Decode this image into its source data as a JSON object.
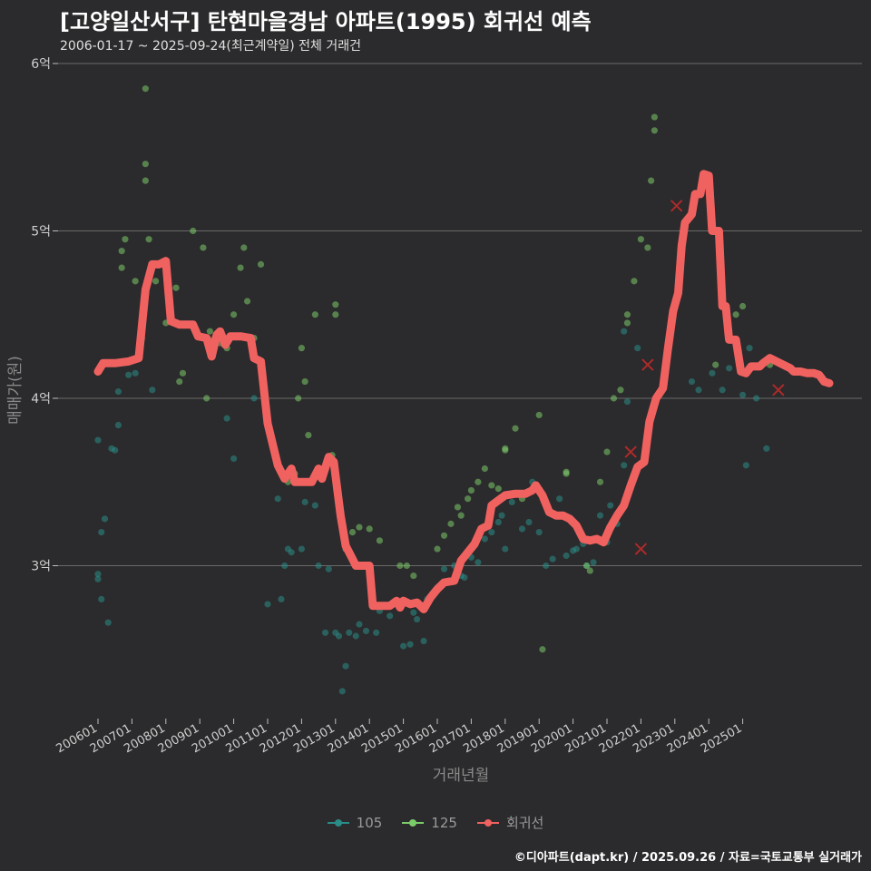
{
  "header": {
    "title": "[고양일산서구] 탄현마을경남 아파트(1995) 회귀선 예측",
    "subtitle": "2006-01-17 ~ 2025-09-24(최근계약일) 전체 거래건"
  },
  "footer": {
    "credit": "©디아파트(dapt.kr) / 2025.09.26 / 자료=국토교통부 실거래가"
  },
  "colors": {
    "background": "#2b2a2c",
    "grid": "#6a6a6a",
    "series_105": "#2a8c86",
    "series_125": "#7ccb6a",
    "regression": "#f06260"
  },
  "chart_data": {
    "type": "scatter",
    "xlabel": "거래년월",
    "ylabel": "매매가(원)",
    "x_tick_labels": [
      "200601",
      "200701",
      "200801",
      "200901",
      "201001",
      "201101",
      "201201",
      "201301",
      "201401",
      "201501",
      "201601",
      "201701",
      "201801",
      "201901",
      "202001",
      "202101",
      "202201",
      "202301",
      "202401",
      "202501"
    ],
    "y_tick_labels": [
      "3억",
      "4억",
      "5억",
      "6억"
    ],
    "y_ticks": [
      3.0,
      4.0,
      5.0,
      6.0
    ],
    "ylim": [
      2.0,
      6.0
    ],
    "y_unit": "억원",
    "grid": true,
    "legend_position": "bottom",
    "series": [
      {
        "name": "105",
        "points": [
          [
            2006.0,
            2.95
          ],
          [
            2006.0,
            2.92
          ],
          [
            2006.1,
            2.8
          ],
          [
            2006.1,
            3.2
          ],
          [
            2006.2,
            3.28
          ],
          [
            2006.3,
            2.66
          ],
          [
            2006.4,
            3.7
          ],
          [
            2006.5,
            3.69
          ],
          [
            2006.6,
            3.84
          ],
          [
            2006.6,
            4.04
          ],
          [
            2006.9,
            4.14
          ],
          [
            2007.1,
            4.15
          ],
          [
            2007.6,
            4.05
          ],
          [
            2006.0,
            3.75
          ],
          [
            2007.3,
            4.36
          ],
          [
            2009.8,
            3.88
          ],
          [
            2010.0,
            3.64
          ],
          [
            2010.6,
            4.0
          ],
          [
            2011.0,
            2.77
          ],
          [
            2011.3,
            3.4
          ],
          [
            2011.4,
            2.8
          ],
          [
            2011.5,
            3.0
          ],
          [
            2011.6,
            3.1
          ],
          [
            2011.7,
            3.08
          ],
          [
            2012.0,
            3.1
          ],
          [
            2012.1,
            3.38
          ],
          [
            2012.4,
            3.36
          ],
          [
            2012.5,
            3.0
          ],
          [
            2012.7,
            2.6
          ],
          [
            2012.8,
            2.98
          ],
          [
            2013.0,
            2.6
          ],
          [
            2013.1,
            2.58
          ],
          [
            2013.2,
            2.25
          ],
          [
            2013.3,
            2.4
          ],
          [
            2013.4,
            2.6
          ],
          [
            2013.6,
            2.58
          ],
          [
            2013.7,
            2.65
          ],
          [
            2013.9,
            2.61
          ],
          [
            2014.2,
            2.6
          ],
          [
            2014.3,
            2.73
          ],
          [
            2014.6,
            2.7
          ],
          [
            2015.0,
            2.52
          ],
          [
            2015.2,
            2.53
          ],
          [
            2015.3,
            2.72
          ],
          [
            2015.4,
            2.68
          ],
          [
            2015.6,
            2.55
          ],
          [
            2015.7,
            2.8
          ],
          [
            2016.0,
            2.87
          ],
          [
            2016.2,
            2.98
          ],
          [
            2016.5,
            3.0
          ],
          [
            2016.7,
            2.94
          ],
          [
            2016.8,
            2.93
          ],
          [
            2017.0,
            3.05
          ],
          [
            2017.2,
            3.02
          ],
          [
            2017.4,
            3.16
          ],
          [
            2017.6,
            3.2
          ],
          [
            2017.8,
            3.26
          ],
          [
            2017.9,
            3.3
          ],
          [
            2018.0,
            3.1
          ],
          [
            2018.2,
            3.38
          ],
          [
            2018.5,
            3.22
          ],
          [
            2018.7,
            3.26
          ],
          [
            2018.8,
            3.5
          ],
          [
            2019.0,
            3.2
          ],
          [
            2019.2,
            3.0
          ],
          [
            2019.4,
            3.04
          ],
          [
            2019.5,
            3.3
          ],
          [
            2019.6,
            3.4
          ],
          [
            2019.8,
            3.06
          ],
          [
            2020.0,
            3.09
          ],
          [
            2020.1,
            3.1
          ],
          [
            2020.3,
            3.13
          ],
          [
            2020.4,
            3.0
          ],
          [
            2020.6,
            3.02
          ],
          [
            2020.8,
            3.3
          ],
          [
            2021.0,
            3.14
          ],
          [
            2021.1,
            3.36
          ],
          [
            2021.3,
            3.25
          ],
          [
            2021.5,
            3.6
          ],
          [
            2021.6,
            3.98
          ],
          [
            2021.9,
            4.3
          ],
          [
            2021.5,
            4.4
          ],
          [
            2024.1,
            4.15
          ],
          [
            2024.4,
            4.05
          ],
          [
            2025.0,
            4.02
          ],
          [
            2025.1,
            3.6
          ],
          [
            2025.2,
            4.3
          ],
          [
            2025.4,
            4.0
          ],
          [
            2025.7,
            3.7
          ],
          [
            2023.5,
            4.1
          ],
          [
            2023.7,
            4.05
          ],
          [
            2024.6,
            4.18
          ]
        ]
      },
      {
        "name": "125",
        "points": [
          [
            2007.1,
            4.7
          ],
          [
            2007.4,
            5.85
          ],
          [
            2007.4,
            5.4
          ],
          [
            2007.4,
            5.3
          ],
          [
            2007.5,
            4.95
          ],
          [
            2006.8,
            4.95
          ],
          [
            2006.7,
            4.88
          ],
          [
            2006.7,
            4.78
          ],
          [
            2007.7,
            4.7
          ],
          [
            2008.3,
            4.66
          ],
          [
            2008.0,
            4.45
          ],
          [
            2008.4,
            4.1
          ],
          [
            2008.5,
            4.15
          ],
          [
            2008.8,
            5.0
          ],
          [
            2009.1,
            4.9
          ],
          [
            2009.2,
            4.0
          ],
          [
            2009.3,
            4.4
          ],
          [
            2009.4,
            4.35
          ],
          [
            2009.6,
            4.33
          ],
          [
            2009.8,
            4.3
          ],
          [
            2010.0,
            4.5
          ],
          [
            2010.2,
            4.78
          ],
          [
            2010.3,
            4.9
          ],
          [
            2010.4,
            4.58
          ],
          [
            2010.6,
            4.36
          ],
          [
            2010.8,
            4.8
          ],
          [
            2011.6,
            3.5
          ],
          [
            2011.8,
            3.55
          ],
          [
            2011.9,
            4.0
          ],
          [
            2012.0,
            4.3
          ],
          [
            2012.1,
            4.1
          ],
          [
            2012.2,
            3.78
          ],
          [
            2012.4,
            4.5
          ],
          [
            2013.0,
            4.56
          ],
          [
            2013.0,
            4.5
          ],
          [
            2012.9,
            3.66
          ],
          [
            2013.3,
            3.1
          ],
          [
            2013.5,
            3.2
          ],
          [
            2013.7,
            3.23
          ],
          [
            2014.0,
            3.22
          ],
          [
            2014.3,
            3.15
          ],
          [
            2014.9,
            3.0
          ],
          [
            2015.3,
            2.94
          ],
          [
            2016.0,
            3.1
          ],
          [
            2016.2,
            3.18
          ],
          [
            2016.4,
            3.25
          ],
          [
            2016.6,
            3.35
          ],
          [
            2016.7,
            3.3
          ],
          [
            2016.9,
            3.4
          ],
          [
            2017.0,
            3.45
          ],
          [
            2017.2,
            3.5
          ],
          [
            2017.4,
            3.58
          ],
          [
            2017.6,
            3.48
          ],
          [
            2017.8,
            3.46
          ],
          [
            2018.0,
            3.69
          ],
          [
            2018.0,
            3.7
          ],
          [
            2018.3,
            3.82
          ],
          [
            2018.5,
            3.4
          ],
          [
            2019.0,
            3.9
          ],
          [
            2019.8,
            3.55
          ],
          [
            2019.8,
            3.56
          ],
          [
            2020.4,
            3.0
          ],
          [
            2020.5,
            2.97
          ],
          [
            2020.8,
            3.5
          ],
          [
            2021.0,
            3.68
          ],
          [
            2021.2,
            4.0
          ],
          [
            2021.4,
            4.05
          ],
          [
            2021.6,
            4.45
          ],
          [
            2021.6,
            4.5
          ],
          [
            2021.8,
            4.7
          ],
          [
            2022.3,
            5.3
          ],
          [
            2022.4,
            5.6
          ],
          [
            2022.4,
            5.68
          ],
          [
            2022.0,
            4.95
          ],
          [
            2022.2,
            4.9
          ],
          [
            2024.8,
            4.5
          ],
          [
            2025.0,
            4.55
          ],
          [
            2024.6,
            4.38
          ],
          [
            2024.2,
            4.2
          ],
          [
            2025.8,
            4.2
          ],
          [
            2015.1,
            3.0
          ],
          [
            2019.1,
            2.5
          ]
        ]
      },
      {
        "name": "회귀선",
        "line": [
          [
            2006.0,
            4.16
          ],
          [
            2006.15,
            4.21
          ],
          [
            2006.5,
            4.21
          ],
          [
            2006.9,
            4.22
          ],
          [
            2007.2,
            4.24
          ],
          [
            2007.4,
            4.65
          ],
          [
            2007.6,
            4.8
          ],
          [
            2007.8,
            4.8
          ],
          [
            2008.0,
            4.82
          ],
          [
            2008.15,
            4.46
          ],
          [
            2008.4,
            4.44
          ],
          [
            2008.8,
            4.44
          ],
          [
            2008.95,
            4.37
          ],
          [
            2009.2,
            4.36
          ],
          [
            2009.35,
            4.25
          ],
          [
            2009.5,
            4.38
          ],
          [
            2009.6,
            4.4
          ],
          [
            2009.75,
            4.32
          ],
          [
            2009.9,
            4.37
          ],
          [
            2010.2,
            4.37
          ],
          [
            2010.5,
            4.36
          ],
          [
            2010.6,
            4.24
          ],
          [
            2010.8,
            4.22
          ],
          [
            2011.0,
            3.85
          ],
          [
            2011.3,
            3.6
          ],
          [
            2011.5,
            3.52
          ],
          [
            2011.7,
            3.58
          ],
          [
            2011.8,
            3.5
          ],
          [
            2012.0,
            3.5
          ],
          [
            2012.3,
            3.5
          ],
          [
            2012.5,
            3.58
          ],
          [
            2012.6,
            3.52
          ],
          [
            2012.8,
            3.65
          ],
          [
            2012.95,
            3.62
          ],
          [
            2013.15,
            3.3
          ],
          [
            2013.3,
            3.12
          ],
          [
            2013.5,
            3.04
          ],
          [
            2013.6,
            3.0
          ],
          [
            2013.8,
            3.0
          ],
          [
            2014.0,
            3.0
          ],
          [
            2014.1,
            2.76
          ],
          [
            2014.3,
            2.76
          ],
          [
            2014.6,
            2.76
          ],
          [
            2014.8,
            2.79
          ],
          [
            2014.9,
            2.75
          ],
          [
            2015.0,
            2.79
          ],
          [
            2015.2,
            2.77
          ],
          [
            2015.4,
            2.78
          ],
          [
            2015.6,
            2.74
          ],
          [
            2015.8,
            2.81
          ],
          [
            2016.0,
            2.86
          ],
          [
            2016.2,
            2.9
          ],
          [
            2016.5,
            2.91
          ],
          [
            2016.7,
            3.03
          ],
          [
            2016.9,
            3.08
          ],
          [
            2017.1,
            3.13
          ],
          [
            2017.3,
            3.22
          ],
          [
            2017.5,
            3.24
          ],
          [
            2017.6,
            3.36
          ],
          [
            2017.8,
            3.39
          ],
          [
            2018.0,
            3.42
          ],
          [
            2018.3,
            3.43
          ],
          [
            2018.6,
            3.43
          ],
          [
            2018.8,
            3.45
          ],
          [
            2018.9,
            3.48
          ],
          [
            2019.1,
            3.42
          ],
          [
            2019.3,
            3.32
          ],
          [
            2019.5,
            3.3
          ],
          [
            2019.7,
            3.3
          ],
          [
            2019.9,
            3.28
          ],
          [
            2020.1,
            3.24
          ],
          [
            2020.3,
            3.16
          ],
          [
            2020.5,
            3.15
          ],
          [
            2020.7,
            3.16
          ],
          [
            2020.9,
            3.14
          ],
          [
            2021.1,
            3.23
          ],
          [
            2021.3,
            3.3
          ],
          [
            2021.5,
            3.36
          ],
          [
            2021.7,
            3.48
          ],
          [
            2021.9,
            3.59
          ],
          [
            2022.1,
            3.62
          ],
          [
            2022.25,
            3.86
          ],
          [
            2022.45,
            4.0
          ],
          [
            2022.65,
            4.06
          ],
          [
            2022.8,
            4.3
          ],
          [
            2022.95,
            4.52
          ],
          [
            2023.1,
            4.63
          ],
          [
            2023.2,
            4.91
          ],
          [
            2023.3,
            5.05
          ],
          [
            2023.5,
            5.1
          ],
          [
            2023.6,
            5.22
          ],
          [
            2023.75,
            5.22
          ],
          [
            2023.85,
            5.34
          ],
          [
            2024.0,
            5.33
          ],
          [
            2024.1,
            5.0
          ],
          [
            2024.3,
            5.0
          ],
          [
            2024.4,
            4.55
          ],
          [
            2024.5,
            4.55
          ],
          [
            2024.6,
            4.35
          ],
          [
            2024.8,
            4.35
          ],
          [
            2024.95,
            4.16
          ],
          [
            2025.1,
            4.15
          ],
          [
            2025.25,
            4.19
          ],
          [
            2025.5,
            4.19
          ],
          [
            2025.6,
            4.21
          ],
          [
            2025.8,
            4.24
          ],
          [
            2026.0,
            4.22
          ],
          [
            2026.2,
            4.2
          ],
          [
            2026.4,
            4.18
          ],
          [
            2026.5,
            4.16
          ],
          [
            2026.7,
            4.16
          ],
          [
            2026.9,
            4.15
          ],
          [
            2027.1,
            4.15
          ],
          [
            2027.25,
            4.14
          ],
          [
            2027.4,
            4.1
          ],
          [
            2027.55,
            4.09
          ]
        ],
        "markers": [
          [
            2021.7,
            3.68
          ],
          [
            2022.0,
            3.1
          ],
          [
            2022.2,
            4.2
          ],
          [
            2023.05,
            5.15
          ],
          [
            2026.05,
            4.05
          ]
        ]
      }
    ]
  }
}
